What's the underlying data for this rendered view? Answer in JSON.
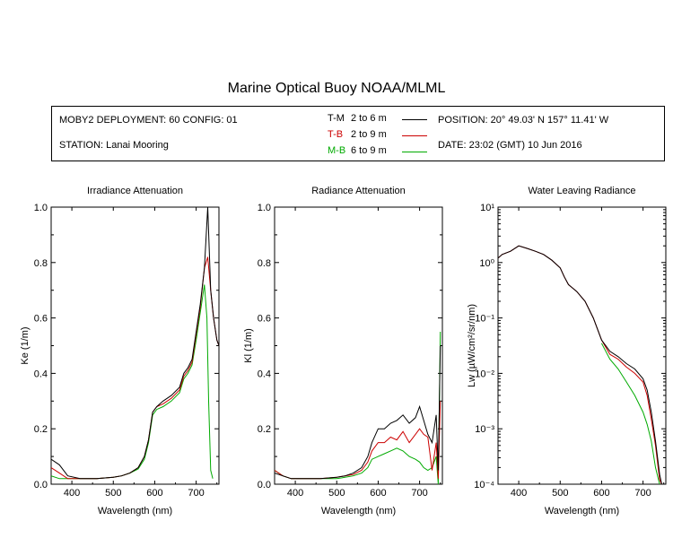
{
  "header": {
    "title": "Marine Optical Buoy NOAA/MLML",
    "deployment": "MOBY2 DEPLOYMENT: 60 CONFIG: 01",
    "station": "STATION: Lanai Mooring",
    "position": "POSITION: 20° 49.03' N   157° 11.41' W",
    "date": "DATE: 23:02 (GMT) 10 Jun 2016"
  },
  "legend": [
    {
      "code": "T-M",
      "range": "2 to 6  m",
      "color": "#000000"
    },
    {
      "code": "T-B",
      "range": "2 to 9  m",
      "color": "#cc0000"
    },
    {
      "code": "M-B",
      "range": "6 to 9  m",
      "color": "#00aa00"
    }
  ],
  "chart_data": [
    {
      "type": "line",
      "title": "Irradiance Attenuation",
      "xlabel": "Wavelength (nm)",
      "ylabel": "Ke  (1/m)",
      "xlim": [
        350,
        755
      ],
      "ylim": [
        0,
        1
      ],
      "xticks": [
        "400",
        "500",
        "600",
        "700"
      ],
      "yticks": [
        "0.0",
        "0.2",
        "0.4",
        "0.6",
        "0.8",
        "1.0"
      ],
      "series": [
        {
          "name": "T-M",
          "color": "#000000",
          "x": [
            350,
            370,
            390,
            420,
            460,
            500,
            520,
            540,
            560,
            575,
            585,
            595,
            605,
            620,
            640,
            660,
            670,
            680,
            690,
            700,
            710,
            720,
            728,
            735,
            742,
            750,
            755
          ],
          "y": [
            0.09,
            0.07,
            0.03,
            0.02,
            0.02,
            0.025,
            0.03,
            0.04,
            0.06,
            0.1,
            0.16,
            0.26,
            0.28,
            0.3,
            0.32,
            0.35,
            0.4,
            0.42,
            0.45,
            0.55,
            0.65,
            0.78,
            1.0,
            0.7,
            0.6,
            0.52,
            0.5
          ]
        },
        {
          "name": "T-B",
          "color": "#cc0000",
          "x": [
            350,
            370,
            390,
            420,
            460,
            500,
            520,
            540,
            560,
            575,
            585,
            595,
            605,
            620,
            640,
            660,
            670,
            680,
            690,
            700,
            710,
            720,
            728,
            735,
            742,
            750,
            755
          ],
          "y": [
            0.06,
            0.04,
            0.02,
            0.02,
            0.02,
            0.025,
            0.03,
            0.04,
            0.06,
            0.1,
            0.16,
            0.26,
            0.28,
            0.29,
            0.31,
            0.34,
            0.39,
            0.41,
            0.44,
            0.54,
            0.64,
            0.78,
            0.82,
            0.7,
            0.6,
            0.52,
            0.5
          ]
        },
        {
          "name": "M-B",
          "color": "#00aa00",
          "x": [
            350,
            370,
            390,
            420,
            460,
            500,
            520,
            540,
            560,
            575,
            585,
            595,
            605,
            620,
            640,
            660,
            670,
            680,
            690,
            700,
            710,
            720,
            726,
            730,
            735,
            740
          ],
          "y": [
            0.03,
            0.02,
            0.02,
            0.02,
            0.02,
            0.025,
            0.03,
            0.04,
            0.055,
            0.09,
            0.15,
            0.25,
            0.27,
            0.28,
            0.3,
            0.33,
            0.38,
            0.4,
            0.43,
            0.52,
            0.62,
            0.72,
            0.6,
            0.3,
            0.05,
            0.02
          ]
        }
      ]
    },
    {
      "type": "line",
      "title": "Radiance Attenuation",
      "xlabel": "Wavelength (nm)",
      "ylabel": "Kl  (1/m)",
      "xlim": [
        350,
        755
      ],
      "ylim": [
        0,
        1
      ],
      "xticks": [
        "400",
        "500",
        "600",
        "700"
      ],
      "yticks": [
        "0.0",
        "0.2",
        "0.4",
        "0.6",
        "0.8",
        "1.0"
      ],
      "series": [
        {
          "name": "T-M",
          "color": "#000000",
          "x": [
            350,
            370,
            390,
            420,
            460,
            500,
            520,
            540,
            560,
            575,
            585,
            600,
            615,
            630,
            645,
            660,
            675,
            690,
            700,
            710,
            720,
            730,
            740,
            745,
            750
          ],
          "y": [
            0.04,
            0.03,
            0.02,
            0.02,
            0.02,
            0.025,
            0.03,
            0.04,
            0.06,
            0.1,
            0.15,
            0.2,
            0.2,
            0.22,
            0.23,
            0.25,
            0.22,
            0.24,
            0.28,
            0.23,
            0.18,
            0.15,
            0.25,
            0.05,
            0.5
          ]
        },
        {
          "name": "T-B",
          "color": "#cc0000",
          "x": [
            350,
            370,
            390,
            420,
            460,
            500,
            520,
            540,
            560,
            575,
            585,
            600,
            615,
            630,
            645,
            660,
            675,
            690,
            700,
            710,
            720,
            730,
            740,
            745,
            750
          ],
          "y": [
            0.05,
            0.03,
            0.02,
            0.02,
            0.02,
            0.025,
            0.03,
            0.035,
            0.05,
            0.08,
            0.12,
            0.15,
            0.15,
            0.17,
            0.16,
            0.19,
            0.15,
            0.18,
            0.2,
            0.18,
            0.17,
            0.05,
            0.15,
            0.02,
            0.3
          ]
        },
        {
          "name": "M-B",
          "color": "#00aa00",
          "x": [
            350,
            370,
            390,
            420,
            460,
            500,
            520,
            540,
            560,
            575,
            585,
            600,
            615,
            630,
            645,
            660,
            675,
            690,
            700,
            710,
            720,
            730,
            740,
            745,
            750
          ],
          "y": [
            0.05,
            0.03,
            0.02,
            0.02,
            0.02,
            0.02,
            0.025,
            0.03,
            0.04,
            0.06,
            0.09,
            0.1,
            0.11,
            0.12,
            0.13,
            0.12,
            0.1,
            0.09,
            0.08,
            0.06,
            0.05,
            0.06,
            0.1,
            0.0,
            0.55
          ]
        }
      ]
    },
    {
      "type": "line",
      "title": "Water Leaving Radiance",
      "xlabel": "Wavelength (nm)",
      "ylabel": "Lw  (µW/cm²/sr/nm)",
      "xlim": [
        350,
        755
      ],
      "ylim": [
        0.0001,
        10
      ],
      "yscale": "log",
      "xticks": [
        "400",
        "500",
        "600",
        "700"
      ],
      "yticks": [
        "10⁻⁴",
        "10⁻³",
        "10⁻²",
        "10⁻¹",
        "10⁰",
        "10¹"
      ],
      "series": [
        {
          "name": "T-M",
          "color": "#000000",
          "x": [
            350,
            360,
            380,
            400,
            420,
            440,
            460,
            480,
            500,
            510,
            520,
            540,
            560,
            580,
            600,
            620,
            640,
            660,
            680,
            700,
            710,
            720,
            730,
            740,
            745
          ],
          "y": [
            1.2,
            1.4,
            1.6,
            2.0,
            1.8,
            1.6,
            1.4,
            1.1,
            0.8,
            0.55,
            0.4,
            0.3,
            0.2,
            0.1,
            0.04,
            0.025,
            0.02,
            0.015,
            0.012,
            0.008,
            0.005,
            0.002,
            0.0006,
            0.00015,
            0.0001
          ]
        },
        {
          "name": "T-B",
          "color": "#cc0000",
          "x": [
            350,
            360,
            380,
            400,
            420,
            440,
            460,
            480,
            500,
            510,
            520,
            540,
            560,
            580,
            600,
            620,
            640,
            660,
            680,
            700,
            710,
            720,
            730,
            740,
            745
          ],
          "y": [
            1.2,
            1.4,
            1.6,
            2.0,
            1.8,
            1.6,
            1.4,
            1.1,
            0.8,
            0.55,
            0.4,
            0.3,
            0.2,
            0.1,
            0.04,
            0.022,
            0.018,
            0.013,
            0.01,
            0.007,
            0.004,
            0.0015,
            0.0005,
            0.00012,
            0.0001
          ]
        },
        {
          "name": "M-B",
          "color": "#00aa00",
          "x": [
            600,
            620,
            640,
            660,
            680,
            700,
            710,
            720,
            730,
            740
          ],
          "y": [
            0.035,
            0.018,
            0.012,
            0.007,
            0.004,
            0.002,
            0.0012,
            0.0006,
            0.0002,
            0.0001
          ]
        }
      ]
    }
  ]
}
